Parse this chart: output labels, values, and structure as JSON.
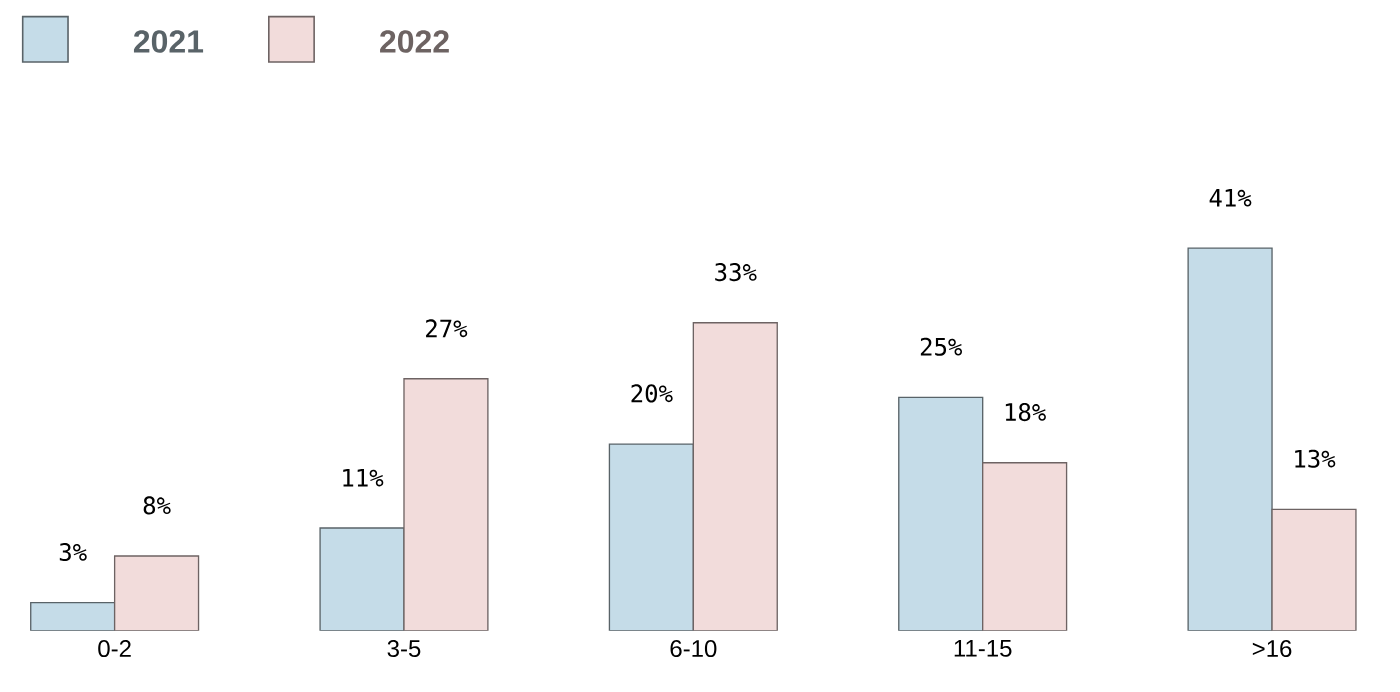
{
  "chart_data": {
    "type": "bar",
    "categories": [
      "0-2",
      "3-5",
      "6-10",
      "11-15",
      ">16"
    ],
    "series": [
      {
        "name": "2021",
        "color": "#c5dce8",
        "values": [
          3,
          11,
          20,
          25,
          41
        ],
        "value_labels": [
          "3%",
          "11%",
          "20%",
          "25%",
          "41%"
        ]
      },
      {
        "name": "2022",
        "color": "#f2dcdb",
        "values": [
          8,
          27,
          33,
          18,
          13
        ],
        "value_labels": [
          "8%",
          "27%",
          "33%",
          "18%",
          "13%"
        ]
      }
    ],
    "legend": "top left"
  }
}
